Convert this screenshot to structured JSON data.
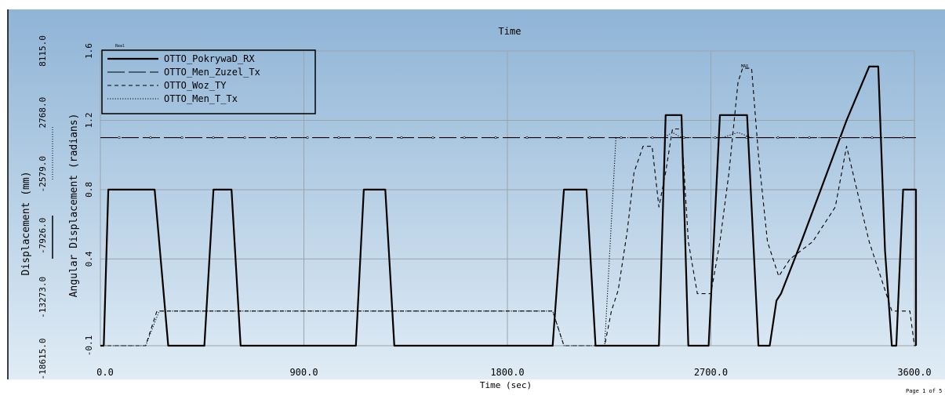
{
  "window": {
    "title": "Time",
    "page_label": "Page 1 of 5",
    "corner_tag": "Real"
  },
  "chart_data": {
    "type": "line",
    "title": "Time",
    "xlabel": "Time (sec)",
    "ylabel_left_outer": "Displacement (mm)",
    "ylabel_left_inner": "Angular Displacement (radians)",
    "xlim": [
      0,
      3600
    ],
    "ylim": [
      -0.1,
      1.6
    ],
    "x_ticks": [
      "0.0",
      "900.0",
      "1800.0",
      "2700.0",
      "3600.0"
    ],
    "y_ticks_inner": [
      "-0.1",
      "0.4",
      "0.8",
      "1.2",
      "1.6"
    ],
    "y_ticks_inner_values": [
      -0.1,
      0.4,
      0.8,
      1.2,
      1.6
    ],
    "y_ticks_outer": [
      "-18615.0",
      "-13273.0",
      "-7926.0",
      "-2579.0",
      "2768.0",
      "8115.0"
    ],
    "grid": true,
    "legend_position": "top-left",
    "background_gradient": [
      "#8fb4d6",
      "#e0ecf5"
    ],
    "annotations": [
      {
        "text": "MAX",
        "x": 2880,
        "y": 1.5
      }
    ],
    "series": [
      {
        "name": "OTTO_PokrywaD_RX",
        "style": "solid-thick",
        "points": [
          [
            0,
            -0.1
          ],
          [
            15,
            -0.1
          ],
          [
            35,
            0.8
          ],
          [
            240,
            0.8
          ],
          [
            300,
            -0.1
          ],
          [
            460,
            -0.1
          ],
          [
            500,
            0.8
          ],
          [
            580,
            0.8
          ],
          [
            620,
            -0.1
          ],
          [
            1130,
            -0.1
          ],
          [
            1165,
            0.8
          ],
          [
            1260,
            0.8
          ],
          [
            1300,
            -0.1
          ],
          [
            2000,
            -0.1
          ],
          [
            2050,
            0.8
          ],
          [
            2150,
            0.8
          ],
          [
            2190,
            -0.1
          ],
          [
            2470,
            -0.1
          ],
          [
            2500,
            1.23
          ],
          [
            2570,
            1.23
          ],
          [
            2600,
            -0.1
          ],
          [
            2690,
            -0.1
          ],
          [
            2740,
            1.23
          ],
          [
            2860,
            1.23
          ],
          [
            2910,
            -0.1
          ],
          [
            2960,
            -0.1
          ],
          [
            2990,
            0.16
          ],
          [
            3010,
            0.2
          ],
          [
            3100,
            0.5
          ],
          [
            3200,
            0.85
          ],
          [
            3300,
            1.2
          ],
          [
            3400,
            1.51
          ],
          [
            3440,
            1.51
          ],
          [
            3470,
            0.45
          ],
          [
            3500,
            -0.1
          ],
          [
            3520,
            -0.1
          ],
          [
            3550,
            0.8
          ],
          [
            3640,
            0.8
          ],
          [
            3660,
            -0.1
          ],
          [
            3690,
            -0.1
          ]
        ]
      },
      {
        "name": "OTTO_Men_Zuzel_Tx",
        "style": "long-dash",
        "points": [
          [
            0,
            1.1
          ],
          [
            3690,
            1.1
          ]
        ]
      },
      {
        "name": "OTTO_Woz_TY",
        "style": "short-dash",
        "points": [
          [
            0,
            -0.1
          ],
          [
            200,
            -0.1
          ],
          [
            250,
            0.1
          ],
          [
            1460,
            0.1
          ],
          [
            2000,
            0.1
          ],
          [
            2050,
            -0.1
          ],
          [
            2230,
            -0.1
          ],
          [
            2260,
            0.1
          ],
          [
            2290,
            0.22
          ],
          [
            2330,
            0.56
          ],
          [
            2360,
            0.9
          ],
          [
            2400,
            1.05
          ],
          [
            2440,
            1.05
          ],
          [
            2470,
            0.7
          ],
          [
            2500,
            0.9
          ],
          [
            2530,
            1.15
          ],
          [
            2570,
            1.15
          ],
          [
            2600,
            0.5
          ],
          [
            2640,
            0.2
          ],
          [
            2700,
            0.2
          ],
          [
            2740,
            0.5
          ],
          [
            2780,
            0.9
          ],
          [
            2820,
            1.42
          ],
          [
            2840,
            1.5
          ],
          [
            2880,
            1.5
          ],
          [
            2910,
            1.0
          ],
          [
            2950,
            0.5
          ],
          [
            3000,
            0.3
          ],
          [
            3050,
            0.4
          ],
          [
            3150,
            0.5
          ],
          [
            3250,
            0.7
          ],
          [
            3300,
            1.05
          ],
          [
            3400,
            0.5
          ],
          [
            3450,
            0.3
          ],
          [
            3500,
            0.1
          ],
          [
            3580,
            0.1
          ],
          [
            3600,
            -0.1
          ],
          [
            3690,
            -0.1
          ]
        ]
      },
      {
        "name": "OTTO_Men_T_Tx",
        "style": "dotted",
        "points": [
          [
            0,
            -0.1
          ],
          [
            200,
            -0.1
          ],
          [
            260,
            0.1
          ],
          [
            1400,
            0.1
          ],
          [
            2000,
            0.1
          ],
          [
            2050,
            -0.1
          ],
          [
            2230,
            -0.1
          ],
          [
            2280,
            1.1
          ],
          [
            2490,
            1.1
          ],
          [
            2530,
            1.13
          ],
          [
            2570,
            1.1
          ],
          [
            2750,
            1.1
          ],
          [
            2820,
            1.13
          ],
          [
            2880,
            1.1
          ],
          [
            3600,
            1.1
          ]
        ]
      }
    ]
  }
}
